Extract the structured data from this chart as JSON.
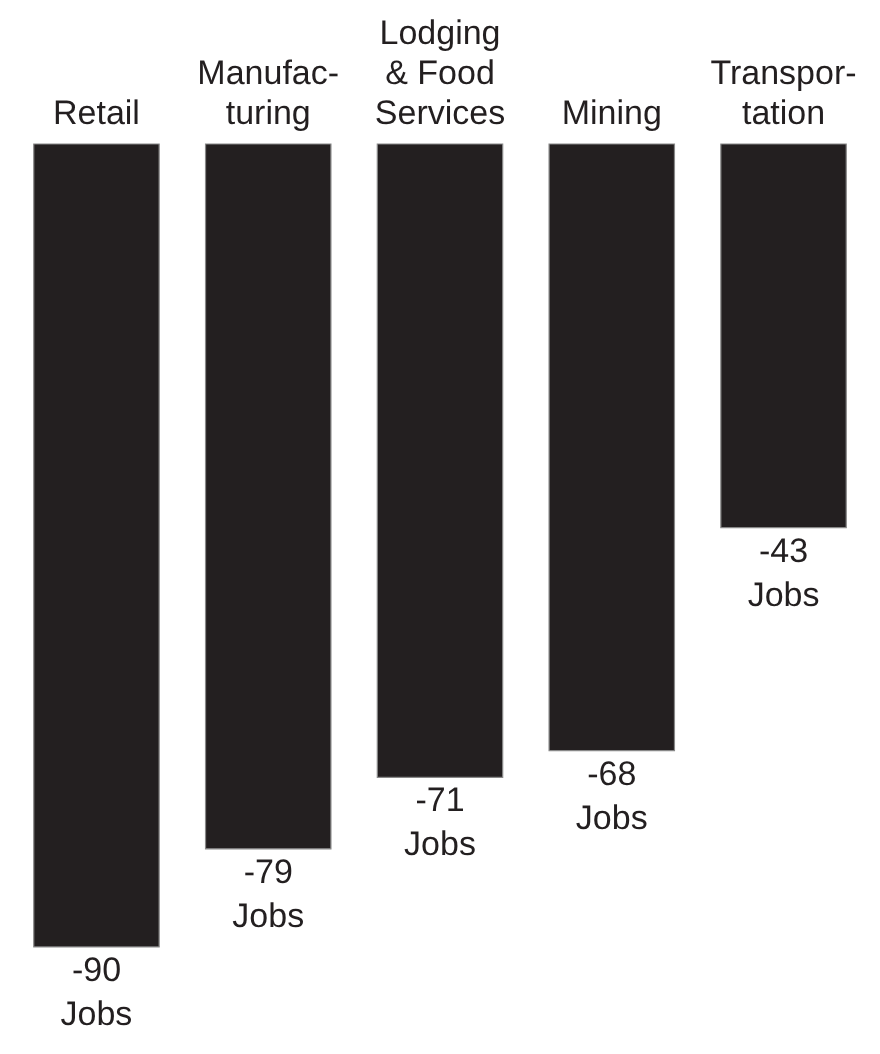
{
  "chart_data": {
    "type": "bar",
    "categories": [
      "Retail",
      "Manufac-\nturing",
      "Lodging\n& Food\nServices",
      "Mining",
      "Transpor-\ntation"
    ],
    "values": [
      -90,
      -79,
      -71,
      -68,
      -43
    ],
    "value_labels": [
      "-90\nJobs",
      "-79\nJobs",
      "-71\nJobs",
      "-68\nJobs",
      "-43\nJobs"
    ],
    "color": "#231f20",
    "ylim": [
      -102,
      0
    ],
    "tick_labels": "x",
    "grid": false
  }
}
